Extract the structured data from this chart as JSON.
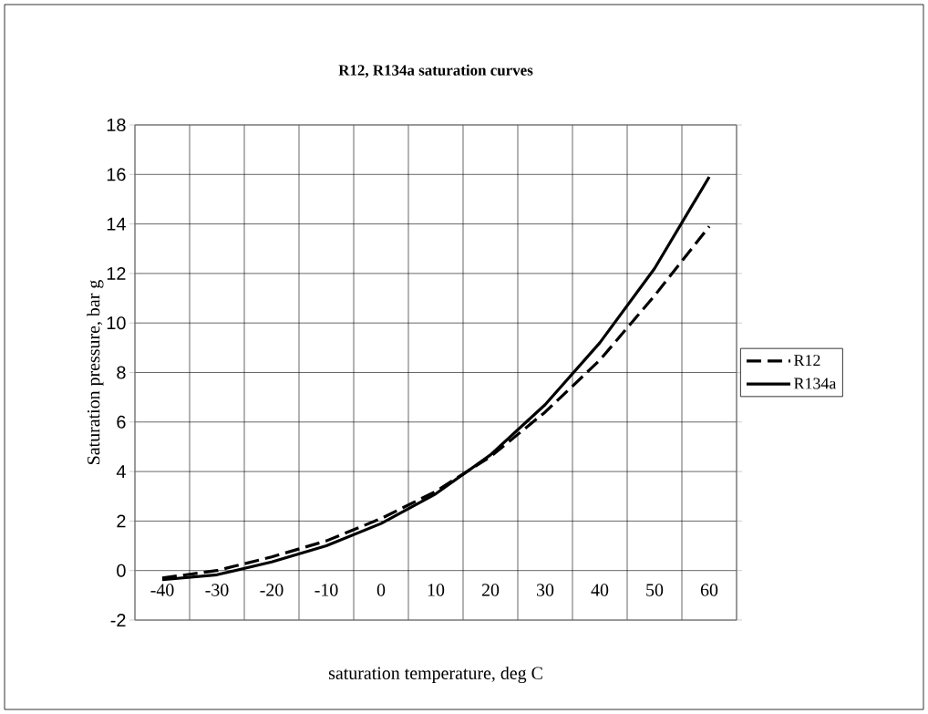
{
  "chart_data": {
    "type": "line",
    "title": "R12, R134a saturation curves",
    "xlabel": "saturation temperature, deg C",
    "ylabel": "Saturation pressure, bar g",
    "categories": [
      "-40",
      "-30",
      "-20",
      "-10",
      "0",
      "10",
      "20",
      "30",
      "40",
      "50",
      "60"
    ],
    "series": [
      {
        "name": "R12",
        "color": "#000000",
        "line_style": "dashed",
        "values": [
          -0.3,
          0.0,
          0.55,
          1.2,
          2.1,
          3.2,
          4.6,
          6.4,
          8.5,
          11.1,
          13.9
        ]
      },
      {
        "name": "R134a",
        "color": "#000000",
        "line_style": "solid",
        "values": [
          -0.37,
          -0.17,
          0.35,
          1.0,
          1.9,
          3.1,
          4.67,
          6.7,
          9.2,
          12.2,
          15.9
        ]
      }
    ],
    "ylim": [
      -2,
      18
    ],
    "yticks": [
      -2,
      0,
      2,
      4,
      6,
      8,
      10,
      12,
      14,
      16,
      18
    ],
    "grid": true,
    "legend": "right"
  }
}
